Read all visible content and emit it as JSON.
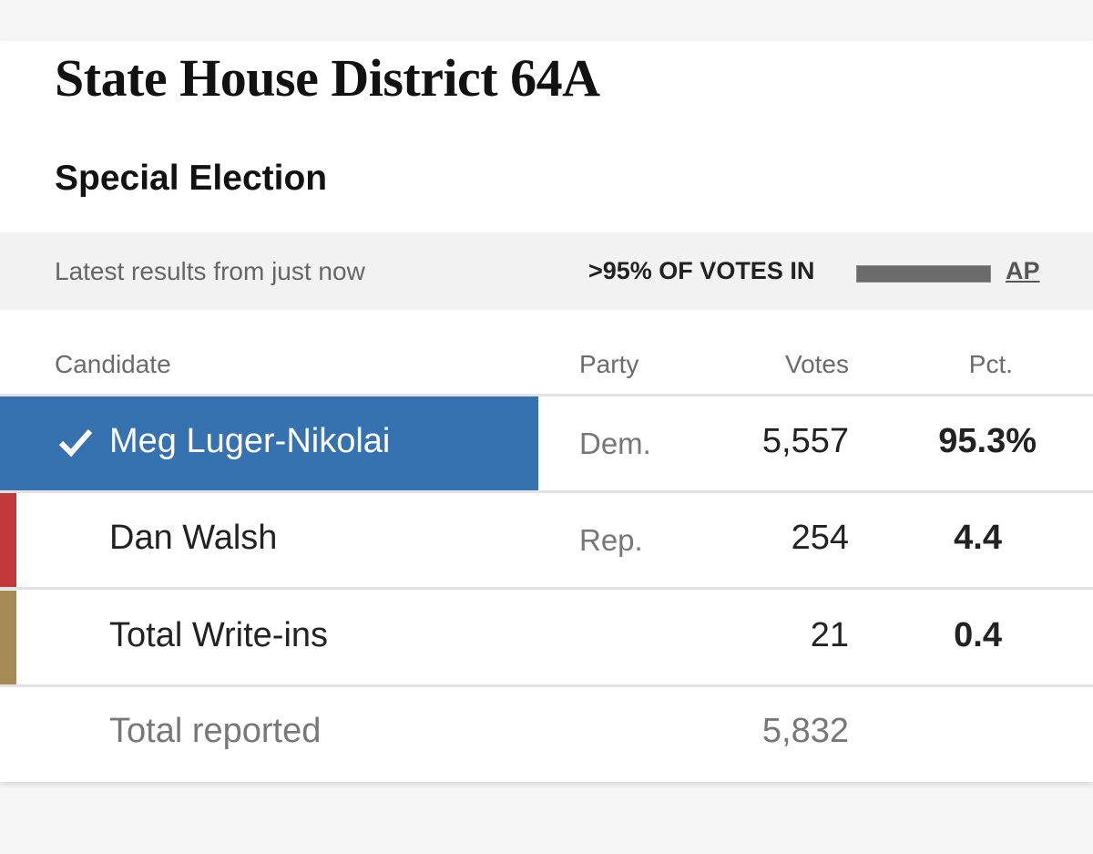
{
  "header": {
    "title": "State House District 64A",
    "subtitle": "Special Election"
  },
  "status": {
    "updated": "Latest results from just now",
    "reporting": ">95% OF VOTES IN",
    "source": "AP"
  },
  "table": {
    "columns": [
      "Candidate",
      "Party",
      "Votes",
      "Pct."
    ],
    "rows": [
      [
        "Meg Luger-Nikolai",
        "Dem.",
        "5,557",
        "95.3%"
      ],
      [
        "Dan Walsh",
        "Rep.",
        "254",
        "4.4"
      ],
      [
        "Total Write-ins",
        null,
        "21",
        "0.4"
      ]
    ],
    "total": [
      "Total reported",
      "5,832"
    ]
  }
}
